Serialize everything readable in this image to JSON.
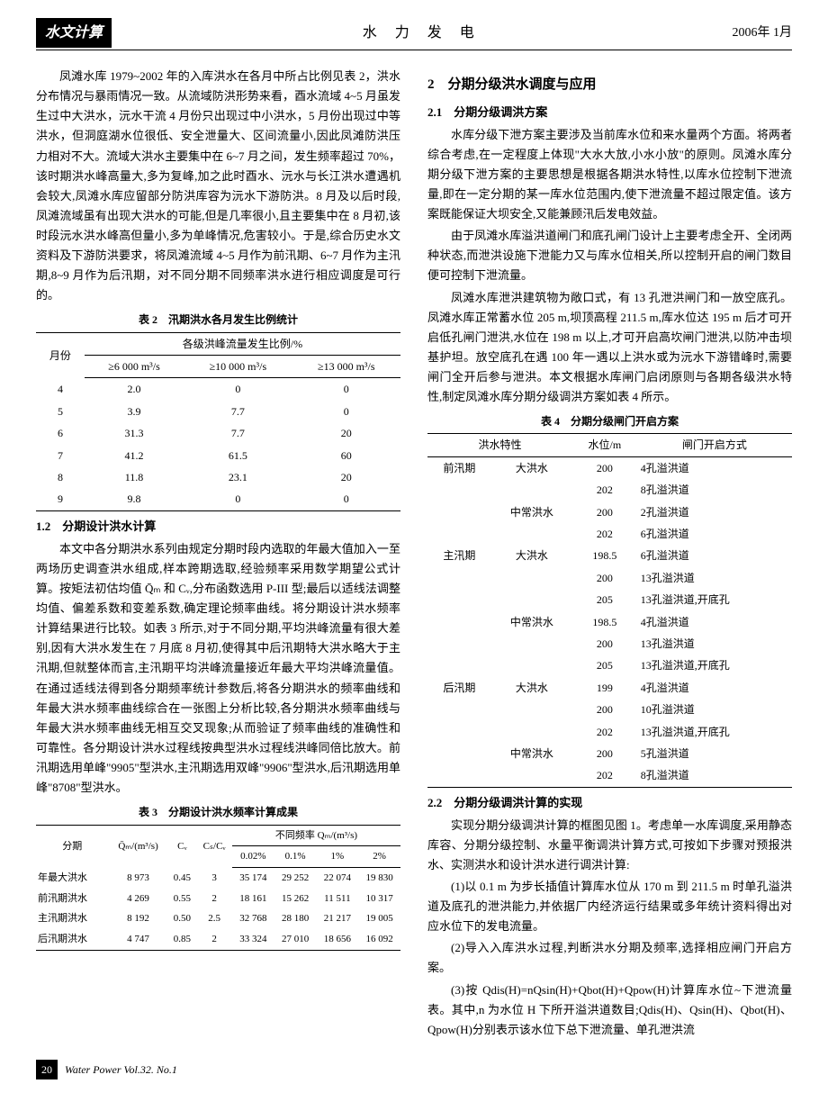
{
  "header": {
    "left": "水文计算",
    "center": "水 力 发 电",
    "right": "2006年 1月"
  },
  "left": {
    "p1": "凤滩水库 1979~2002 年的入库洪水在各月中所占比例见表 2，洪水分布情况与暴雨情况一致。从流域防洪形势来看，酉水流域 4~5 月虽发生过中大洪水，沅水干流 4 月份只出现过中小洪水，5 月份出现过中等洪水，但洞庭湖水位很低、安全泄量大、区间流量小,因此凤滩防洪压力相对不大。流域大洪水主要集中在 6~7 月之间，发生频率超过 70%，该时期洪水峰高量大,多为复峰,加之此时酉水、沅水与长江洪水遭遇机会较大,凤滩水库应留部分防洪库容为沅水下游防洪。8 月及以后时段,凤滩流域虽有出现大洪水的可能,但是几率很小,且主要集中在 8 月初,该时段沅水洪水峰高但量小,多为单峰情况,危害较小。于是,综合历史水文资料及下游防洪要求，将凤滩流域 4~5 月作为前汛期、6~7 月作为主汛期,8~9 月作为后汛期，对不同分期不同频率洪水进行相应调度是可行的。",
    "t2_title": "表 2　汛期洪水各月发生比例统计",
    "t2": {
      "h1": "月份",
      "h2": "各级洪峰流量发生比例/%",
      "sh1": "≥6 000 m³/s",
      "sh2": "≥10 000 m³/s",
      "sh3": "≥13 000 m³/s",
      "rows": [
        [
          "4",
          "2.0",
          "0",
          "0"
        ],
        [
          "5",
          "3.9",
          "7.7",
          "0"
        ],
        [
          "6",
          "31.3",
          "7.7",
          "20"
        ],
        [
          "7",
          "41.2",
          "61.5",
          "60"
        ],
        [
          "8",
          "11.8",
          "23.1",
          "20"
        ],
        [
          "9",
          "9.8",
          "0",
          "0"
        ]
      ]
    },
    "s12": "1.2　分期设计洪水计算",
    "p2": "本文中各分期洪水系列由规定分期时段内选取的年最大值加入一至两场历史调查洪水组成,样本跨期选取,经验频率采用数学期望公式计算。按矩法初估均值 Q̄ₘ 和 Cᵥ,分布函数选用 P-III 型;最后以适线法调整均值、偏差系数和变差系数,确定理论频率曲线。将分期设计洪水频率计算结果进行比较。如表 3 所示,对于不同分期,平均洪峰流量有很大差别,因有大洪水发生在 7 月底 8 月初,使得其中后汛期特大洪水略大于主汛期,但就整体而言,主汛期平均洪峰流量接近年最大平均洪峰流量值。在通过适线法得到各分期频率统计参数后,将各分期洪水的频率曲线和年最大洪水频率曲线综合在一张图上分析比较,各分期洪水频率曲线与年最大洪水频率曲线无相互交叉现象;从而验证了频率曲线的准确性和可靠性。各分期设计洪水过程线按典型洪水过程线洪峰同倍比放大。前汛期选用单峰\"9905\"型洪水,主汛期选用双峰\"9906\"型洪水,后汛期选用单峰\"8708\"型洪水。",
    "t3_title": "表 3　分期设计洪水频率计算成果",
    "t3": {
      "h1": "分期",
      "h2": "Q̄ₘ/(m³/s)",
      "h3": "Cᵥ",
      "h4": "Cₛ/Cᵥ",
      "h5": "不同频率 Qₘ/(m³/s)",
      "sh1": "0.02%",
      "sh2": "0.1%",
      "sh3": "1%",
      "sh4": "2%",
      "rows": [
        [
          "年最大洪水",
          "8 973",
          "0.45",
          "3",
          "35 174",
          "29 252",
          "22 074",
          "19 830"
        ],
        [
          "前汛期洪水",
          "4 269",
          "0.55",
          "2",
          "18 161",
          "15 262",
          "11 511",
          "10 317"
        ],
        [
          "主汛期洪水",
          "8 192",
          "0.50",
          "2.5",
          "32 768",
          "28 180",
          "21 217",
          "19 005"
        ],
        [
          "后汛期洪水",
          "4 747",
          "0.85",
          "2",
          "33 324",
          "27 010",
          "18 656",
          "16 092"
        ]
      ]
    }
  },
  "right": {
    "s2": "2　分期分级洪水调度与应用",
    "s21": "2.1　分期分级调洪方案",
    "p1": "水库分级下泄方案主要涉及当前库水位和来水量两个方面。将两者综合考虑,在一定程度上体现\"大水大放,小水小放\"的原则。凤滩水库分期分级下泄方案的主要思想是根据各期洪水特性,以库水位控制下泄流量,即在一定分期的某一库水位范围内,使下泄流量不超过限定值。该方案既能保证大坝安全,又能兼顾汛后发电效益。",
    "p2": "由于凤滩水库溢洪道闸门和底孔闸门设计上主要考虑全开、全闭两种状态,而泄洪设施下泄能力又与库水位相关,所以控制开启的闸门数目便可控制下泄流量。",
    "p3": "凤滩水库泄洪建筑物为敞口式，有 13 孔泄洪闸门和一放空底孔。凤滩水库正常蓄水位 205 m,坝顶高程 211.5 m,库水位达 195 m 后才可开启低孔闸门泄洪,水位在 198 m 以上,才可开启高坎闸门泄洪,以防冲击坝基护坦。放空底孔在遇 100 年一遇以上洪水或为沅水下游错峰时,需要闸门全开后参与泄洪。本文根据水库闸门启闭原则与各期各级洪水特性,制定凤滩水库分期分级调洪方案如表 4 所示。",
    "t4_title": "表 4　分期分级闸门开启方案",
    "t4": {
      "h1": "洪水特性",
      "h2": "水位/m",
      "h3": "闸门开启方式",
      "rows": [
        [
          "前汛期",
          "大洪水",
          "200",
          "4孔溢洪道"
        ],
        [
          "",
          "",
          "202",
          "8孔溢洪道"
        ],
        [
          "",
          "中常洪水",
          "200",
          "2孔溢洪道"
        ],
        [
          "",
          "",
          "202",
          "6孔溢洪道"
        ],
        [
          "主汛期",
          "大洪水",
          "198.5",
          "6孔溢洪道"
        ],
        [
          "",
          "",
          "200",
          "13孔溢洪道"
        ],
        [
          "",
          "",
          "205",
          "13孔溢洪道,开底孔"
        ],
        [
          "",
          "中常洪水",
          "198.5",
          "4孔溢洪道"
        ],
        [
          "",
          "",
          "200",
          "13孔溢洪道"
        ],
        [
          "",
          "",
          "205",
          "13孔溢洪道,开底孔"
        ],
        [
          "后汛期",
          "大洪水",
          "199",
          "4孔溢洪道"
        ],
        [
          "",
          "",
          "200",
          "10孔溢洪道"
        ],
        [
          "",
          "",
          "202",
          "13孔溢洪道,开底孔"
        ],
        [
          "",
          "中常洪水",
          "200",
          "5孔溢洪道"
        ],
        [
          "",
          "",
          "202",
          "8孔溢洪道"
        ]
      ]
    },
    "s22": "2.2　分期分级调洪计算的实现",
    "p4": "实现分期分级调洪计算的框图见图 1。考虑单一水库调度,采用静态库容、分期分级控制、水量平衡调洪计算方式,可按如下步骤对预报洪水、实测洪水和设计洪水进行调洪计算:",
    "p5": "(1)以 0.1 m 为步长插值计算库水位从 170 m 到 211.5 m 时单孔溢洪道及底孔的泄洪能力,并依据厂内经济运行结果或多年统计资料得出对应水位下的发电流量。",
    "p6": "(2)导入入库洪水过程,判断洪水分期及频率,选择相应闸门开启方案。",
    "p7": "(3)按 Qdis(H)=nQsin(H)+Qbot(H)+Qpow(H)计算库水位~下泄流量表。其中,n 为水位 H 下所开溢洪道数目;Qdis(H)、Qsin(H)、Qbot(H)、Qpow(H)分别表示该水位下总下泄流量、单孔泄洪流"
  },
  "footer": {
    "page": "20",
    "cite": "Water Power Vol.32. No.1"
  }
}
